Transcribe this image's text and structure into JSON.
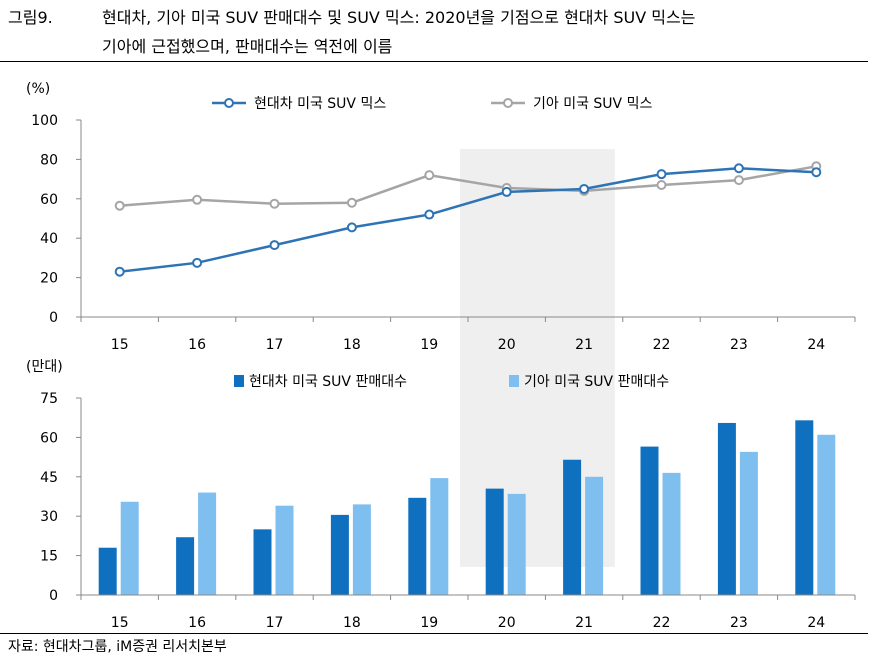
{
  "figure": {
    "label": "그림9.",
    "title_line1": "현대차, 기아 미국 SUV 판매대수 및 SUV 믹스: 2020년을 기점으로 현대차 SUV 믹스는",
    "title_line2": "기아에 근접했으며, 판매대수는 역전에 이름",
    "source": "자료: 현대차그룹, iM증권 리서치본부"
  },
  "colors": {
    "hyundai_line": "#2E74B5",
    "kia_line": "#A5A5A5",
    "hyundai_bar": "#1070C0",
    "kia_bar": "#7FBFEF",
    "highlight": "#EFEFEF"
  },
  "chart_data": [
    {
      "type": "line",
      "unit_label": "(%)",
      "categories": [
        "15",
        "16",
        "17",
        "18",
        "19",
        "20",
        "21",
        "22",
        "23",
        "24"
      ],
      "ylim": [
        0,
        100
      ],
      "yticks": [
        0,
        20,
        40,
        60,
        80,
        100
      ],
      "highlight_categories": [
        "20",
        "21"
      ],
      "legend_position": "top",
      "series": [
        {
          "name": "현대차 미국 SUV 믹스",
          "values": [
            23,
            27.5,
            36.5,
            45.5,
            52,
            63.5,
            65,
            72.5,
            75.5,
            73.5
          ]
        },
        {
          "name": "기아 미국 SUV 믹스",
          "values": [
            56.5,
            59.5,
            57.5,
            58,
            72,
            65.5,
            64,
            67,
            69.5,
            76.5
          ]
        }
      ]
    },
    {
      "type": "bar",
      "unit_label": "(만대)",
      "categories": [
        "15",
        "16",
        "17",
        "18",
        "19",
        "20",
        "21",
        "22",
        "23",
        "24"
      ],
      "ylim": [
        0,
        75
      ],
      "yticks": [
        0,
        15,
        30,
        45,
        60,
        75
      ],
      "highlight_categories": [
        "20",
        "21"
      ],
      "legend_position": "top",
      "series": [
        {
          "name": "현대차 미국 SUV 판매대수",
          "values": [
            18,
            22,
            25,
            30.5,
            37,
            40.5,
            51.5,
            56.5,
            65.5,
            66.5
          ]
        },
        {
          "name": "기아 미국 SUV 판매대수",
          "values": [
            35.5,
            39,
            34,
            34.5,
            44.5,
            38.5,
            45,
            46.5,
            54.5,
            61
          ]
        }
      ]
    }
  ]
}
